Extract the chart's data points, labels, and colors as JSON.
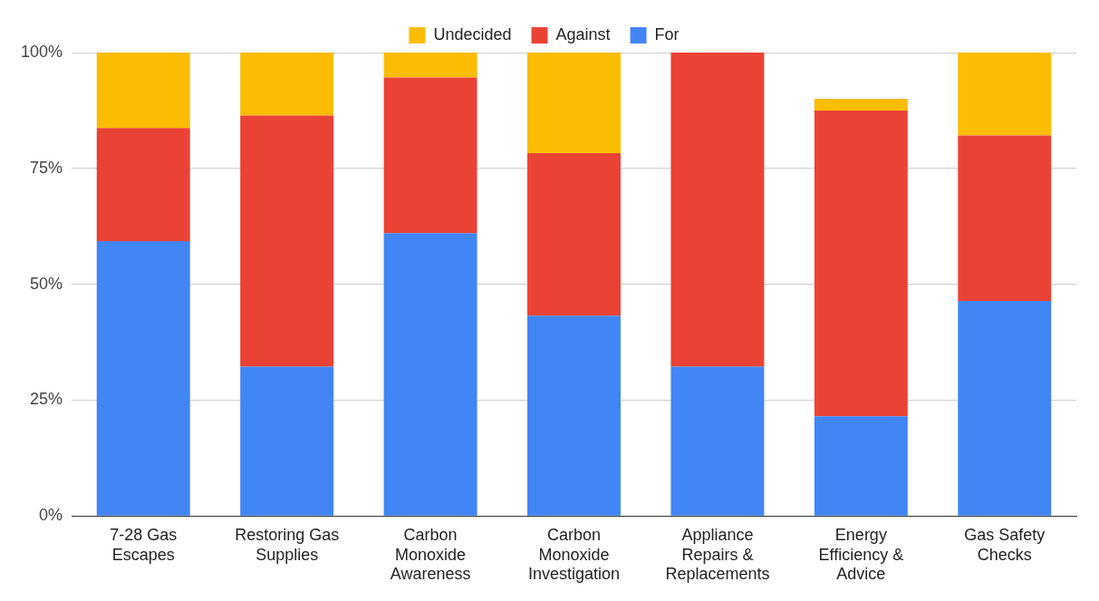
{
  "chart_data": {
    "type": "bar",
    "stacked": true,
    "legend": "top",
    "grid": "y",
    "categories": [
      "7-28 Gas Escapes",
      "Restoring Gas Supplies",
      "Carbon Monoxide Awareness",
      "Carbon Monoxide Investigation",
      "Appliance Repairs & Replacements",
      "Energy Efficiency & Advice",
      "Gas Safety Checks"
    ],
    "series": [
      {
        "name": "For",
        "color": "#4285f4",
        "values": [
          59.3,
          32.2,
          61.0,
          43.2,
          32.2,
          21.5,
          46.4
        ]
      },
      {
        "name": "Against",
        "color": "#ea4335",
        "values": [
          24.4,
          54.2,
          33.6,
          35.1,
          67.8,
          66.0,
          35.7
        ]
      },
      {
        "name": "Undecided",
        "color": "#fbbc04",
        "values": [
          16.3,
          13.6,
          5.4,
          21.7,
          0,
          2.5,
          17.9
        ]
      }
    ],
    "ylim": [
      0,
      100
    ],
    "yticks": [
      {
        "value": 0,
        "label": "0%"
      },
      {
        "value": 25,
        "label": "25%"
      },
      {
        "value": 50,
        "label": "50%"
      },
      {
        "value": 75,
        "label": "75%"
      },
      {
        "value": 100,
        "label": "100%"
      }
    ]
  }
}
